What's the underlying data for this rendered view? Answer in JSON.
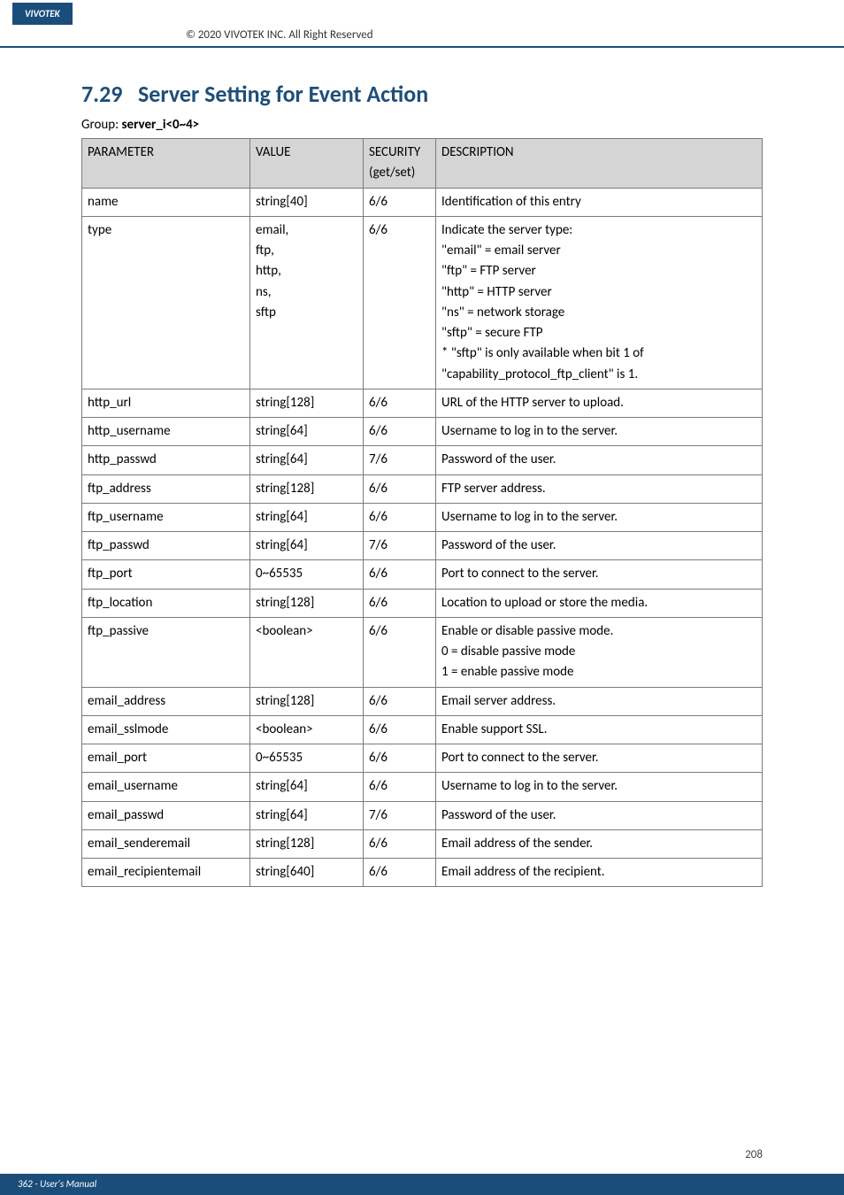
{
  "header": {
    "brand": "VIVOTEK",
    "copyright": "© 2020 VIVOTEK INC. All Right Reserved"
  },
  "section": {
    "number": "7.29",
    "title": "Server Setting for Event Action",
    "group_prefix": "Group: ",
    "group_name": "server_i<0~4>"
  },
  "table": {
    "headers": {
      "parameter": "PARAMETER",
      "value": "VALUE",
      "security": "SECURITY\n(get/set)",
      "description": "DESCRIPTION"
    },
    "rows": [
      {
        "param": "name",
        "value": "string[40]",
        "sec": "6/6",
        "desc": "Identification of this entry"
      },
      {
        "param": "type",
        "value": "email,\nftp,\nhttp,\nns,\nsftp",
        "sec": "6/6",
        "desc": "Indicate the server type:\n\"email\" = email server\n\"ftp\" = FTP server\n\"http\" = HTTP server\n\"ns\" = network storage\n\"sftp\" = secure FTP\n* \"sftp\" is only available when bit 1 of \"capability_protocol_ftp_client\" is 1."
      },
      {
        "param": "http_url",
        "value": "string[128]",
        "sec": "6/6",
        "desc": "URL of the HTTP server to upload."
      },
      {
        "param": "http_username",
        "value": "string[64]",
        "sec": "6/6",
        "desc": "Username to log in to the server."
      },
      {
        "param": "http_passwd",
        "value": "string[64]",
        "sec": "7/6",
        "desc": "Password of the user."
      },
      {
        "param": "ftp_address",
        "value": "string[128]",
        "sec": "6/6",
        "desc": "FTP server address."
      },
      {
        "param": "ftp_username",
        "value": "string[64]",
        "sec": "6/6",
        "desc": "Username to log in to the server."
      },
      {
        "param": "ftp_passwd",
        "value": "string[64]",
        "sec": "7/6",
        "desc": "Password of the user."
      },
      {
        "param": "ftp_port",
        "value": "0~65535",
        "sec": "6/6",
        "desc": "Port to connect to the server."
      },
      {
        "param": "ftp_location",
        "value": "string[128]",
        "sec": "6/6",
        "desc": "Location to upload or store the media."
      },
      {
        "param": "ftp_passive",
        "value": "<boolean>",
        "sec": "6/6",
        "desc": "Enable or disable passive mode.\n0 = disable passive mode\n1 = enable passive mode"
      },
      {
        "param": "email_address",
        "value": "string[128]",
        "sec": "6/6",
        "desc": "Email server address."
      },
      {
        "param": "email_sslmode",
        "value": "<boolean>",
        "sec": "6/6",
        "desc": "Enable support SSL."
      },
      {
        "param": "email_port",
        "value": "0~65535",
        "sec": "6/6",
        "desc": "Port to connect to the server."
      },
      {
        "param": "email_username",
        "value": "string[64]",
        "sec": "6/6",
        "desc": "Username to log in to the server."
      },
      {
        "param": "email_passwd",
        "value": "string[64]",
        "sec": "7/6",
        "desc": "Password of the user."
      },
      {
        "param": "email_senderemail",
        "value": "string[128]",
        "sec": "6/6",
        "desc": "Email address of the sender."
      },
      {
        "param": "email_recipientemail",
        "value": "string[640]",
        "sec": "6/6",
        "desc": "Email address of the recipient."
      }
    ]
  },
  "page": {
    "number": "208",
    "footer": "362 - User's Manual"
  }
}
